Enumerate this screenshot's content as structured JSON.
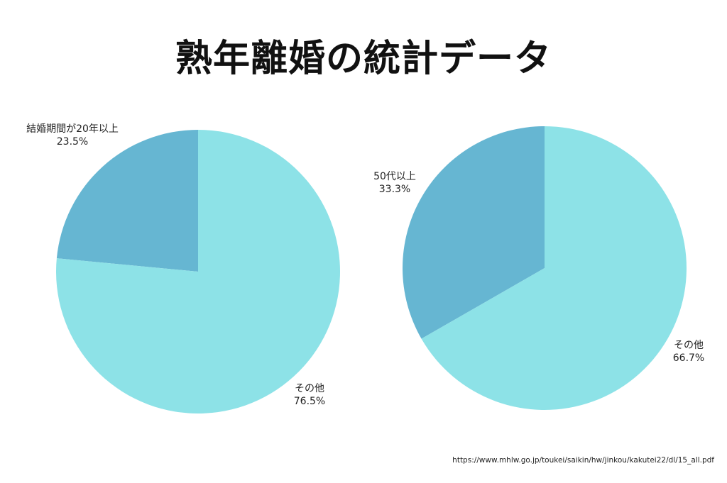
{
  "title": "熟年離婚の統計データ",
  "source": "https://www.mhlw.go.jp/toukei/saikin/hw/jinkou/kakutei22/dl/15_all.pdf",
  "colors": {
    "dark": "#66b6d2",
    "light": "#8de2e7"
  },
  "chart_data": [
    {
      "type": "pie",
      "title": "",
      "slices": [
        {
          "label": "結婚期間が20年以上",
          "value": 23.5,
          "value_label": "23.5%",
          "color": "#66b6d2"
        },
        {
          "label": "その他",
          "value": 76.5,
          "value_label": "76.5%",
          "color": "#8de2e7"
        }
      ]
    },
    {
      "type": "pie",
      "title": "",
      "slices": [
        {
          "label": "50代以上",
          "value": 33.3,
          "value_label": "33.3%",
          "color": "#66b6d2"
        },
        {
          "label": "その他",
          "value": 66.7,
          "value_label": "66.7%",
          "color": "#8de2e7"
        }
      ]
    }
  ]
}
